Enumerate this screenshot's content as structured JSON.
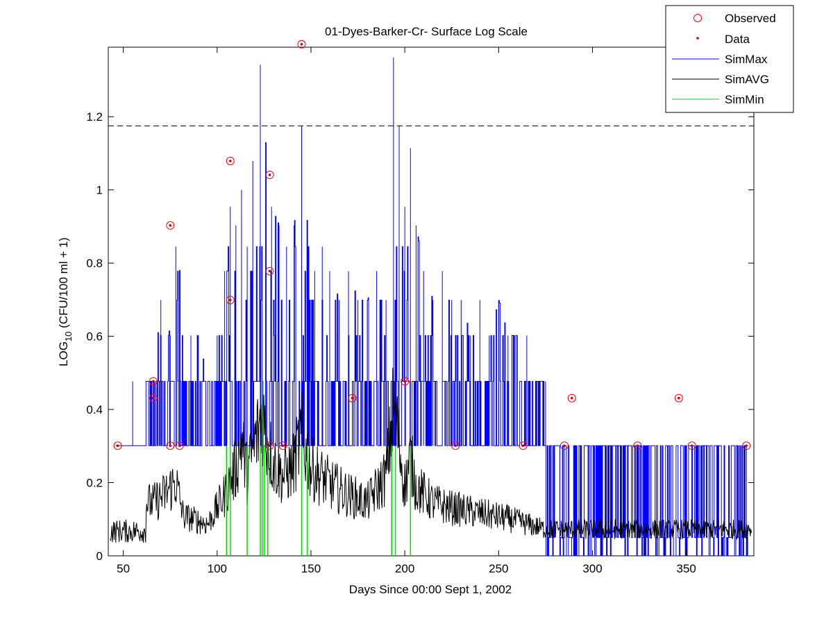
{
  "chart_data": {
    "type": "line",
    "title": "01-Dyes-Barker-Cr- Surface Log Scale",
    "xlabel": "Days Since 00:00 Sept 1, 2002",
    "ylabel_base": "LOG",
    "ylabel_sub": "10",
    "ylabel_rest": " (CFU/100 ml + 1)",
    "xlim": [
      42,
      386
    ],
    "ylim": [
      0,
      1.39
    ],
    "x_ticks": [
      50,
      100,
      150,
      200,
      250,
      300,
      350
    ],
    "y_ticks": [
      0,
      0.2,
      0.4,
      0.6,
      0.8,
      1,
      1.2
    ],
    "y_tick_labels": [
      "0",
      "0.2",
      "0.4",
      "0.6",
      "0.8",
      "1",
      "1.2"
    ],
    "reference_line": 1.175,
    "legend_position": "top-right",
    "legend": [
      "Observed",
      "Data",
      "SimMax",
      "SimAVG",
      "SimMin"
    ],
    "colors": {
      "observed": "#ff0000",
      "data": "#cc0000",
      "simmax": "#0000ff",
      "simavg": "#000000",
      "simmin": "#00dd00",
      "reference": "#000000"
    },
    "observed_points": [
      [
        47,
        0.301
      ],
      [
        66,
        0.477
      ],
      [
        66,
        0.431
      ],
      [
        75,
        0.903
      ],
      [
        75,
        0.301
      ],
      [
        80,
        0.301
      ],
      [
        107,
        1.079
      ],
      [
        107,
        0.699
      ],
      [
        128,
        1.041
      ],
      [
        128,
        0.778
      ],
      [
        128,
        0.301
      ],
      [
        135,
        0.301
      ],
      [
        145,
        1.398
      ],
      [
        172,
        0.431
      ],
      [
        200,
        0.477
      ],
      [
        227,
        0.301
      ],
      [
        263,
        0.301
      ],
      [
        285,
        0.301
      ],
      [
        289,
        0.431
      ],
      [
        324,
        0.301
      ],
      [
        346,
        0.431
      ],
      [
        353,
        0.301
      ],
      [
        382,
        0.301
      ]
    ],
    "simmax_peaks": [
      [
        55,
        0.477
      ],
      [
        66,
        0.477
      ],
      [
        70,
        0.699
      ],
      [
        75,
        0.602
      ],
      [
        78,
        0.845
      ],
      [
        80,
        0.778
      ],
      [
        86,
        0.602
      ],
      [
        90,
        0.602
      ],
      [
        95,
        0.477
      ],
      [
        100,
        0.602
      ],
      [
        104,
        0.778
      ],
      [
        107,
        0.954
      ],
      [
        110,
        0.903
      ],
      [
        113,
        1.0
      ],
      [
        116,
        0.845
      ],
      [
        119,
        1.079
      ],
      [
        123,
        1.342
      ],
      [
        126,
        1.114
      ],
      [
        129,
        0.954
      ],
      [
        133,
        0.903
      ],
      [
        137,
        0.845
      ],
      [
        141,
        0.903
      ],
      [
        145,
        1.176
      ],
      [
        148,
        0.903
      ],
      [
        152,
        0.778
      ],
      [
        156,
        0.845
      ],
      [
        160,
        0.778
      ],
      [
        165,
        0.699
      ],
      [
        170,
        0.778
      ],
      [
        175,
        0.699
      ],
      [
        180,
        0.699
      ],
      [
        185,
        0.778
      ],
      [
        190,
        0.699
      ],
      [
        194,
        1.362
      ],
      [
        197,
        1.176
      ],
      [
        200,
        0.954
      ],
      [
        203,
        1.114
      ],
      [
        206,
        0.903
      ],
      [
        210,
        0.778
      ],
      [
        215,
        0.699
      ],
      [
        220,
        0.778
      ],
      [
        225,
        0.699
      ],
      [
        230,
        0.699
      ],
      [
        235,
        0.602
      ],
      [
        240,
        0.699
      ],
      [
        245,
        0.602
      ],
      [
        250,
        0.699
      ],
      [
        255,
        0.602
      ],
      [
        260,
        0.602
      ],
      [
        265,
        0.602
      ],
      [
        270,
        0.477
      ],
      [
        275,
        0.477
      ]
    ],
    "simmin_spikes": [
      [
        105,
        0.301
      ],
      [
        107,
        0.301
      ],
      [
        116,
        0.301
      ],
      [
        123,
        0.301
      ],
      [
        124,
        0.477
      ],
      [
        125,
        0.301
      ],
      [
        127,
        0.301
      ],
      [
        145,
        0.301
      ],
      [
        148,
        0.301
      ],
      [
        193,
        0.301
      ],
      [
        195,
        0.301
      ],
      [
        203,
        0.301
      ]
    ],
    "simavg_peaks": [
      [
        66,
        0.2
      ],
      [
        72,
        0.23
      ],
      [
        78,
        0.28
      ],
      [
        82,
        0.15
      ],
      [
        95,
        0.12
      ],
      [
        105,
        0.24
      ],
      [
        110,
        0.33
      ],
      [
        113,
        0.44
      ],
      [
        116,
        0.3
      ],
      [
        119,
        0.4
      ],
      [
        122,
        0.47
      ],
      [
        124,
        0.55
      ],
      [
        126,
        0.45
      ],
      [
        130,
        0.35
      ],
      [
        135,
        0.3
      ],
      [
        140,
        0.33
      ],
      [
        145,
        0.45
      ],
      [
        150,
        0.33
      ],
      [
        160,
        0.27
      ],
      [
        170,
        0.23
      ],
      [
        180,
        0.2
      ],
      [
        190,
        0.3
      ],
      [
        194,
        0.56
      ],
      [
        197,
        0.42
      ],
      [
        200,
        0.26
      ],
      [
        203,
        0.37
      ],
      [
        206,
        0.26
      ],
      [
        215,
        0.2
      ],
      [
        225,
        0.18
      ],
      [
        240,
        0.16
      ],
      [
        255,
        0.14
      ],
      [
        265,
        0.12
      ],
      [
        275,
        0.1
      ],
      [
        300,
        0.1
      ],
      [
        330,
        0.1
      ],
      [
        360,
        0.1
      ],
      [
        382,
        0.1
      ]
    ]
  }
}
